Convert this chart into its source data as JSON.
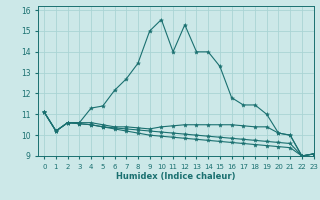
{
  "xlabel": "Humidex (Indice chaleur)",
  "ylabel": "",
  "bg_color": "#cce8e8",
  "grid_color": "#aad4d4",
  "line_color": "#1a7070",
  "xlim": [
    -0.5,
    23
  ],
  "ylim": [
    9,
    16.2
  ],
  "yticks": [
    9,
    10,
    11,
    12,
    13,
    14,
    15,
    16
  ],
  "xticks": [
    0,
    1,
    2,
    3,
    4,
    5,
    6,
    7,
    8,
    9,
    10,
    11,
    12,
    13,
    14,
    15,
    16,
    17,
    18,
    19,
    20,
    21,
    22,
    23
  ],
  "curve1_x": [
    0,
    1,
    2,
    3,
    4,
    5,
    6,
    7,
    8,
    9,
    10,
    11,
    12,
    13,
    14,
    15,
    16,
    17,
    18,
    19,
    20,
    21,
    22,
    23
  ],
  "curve1_y": [
    11.1,
    10.2,
    10.6,
    10.6,
    11.3,
    11.4,
    12.15,
    12.7,
    13.45,
    15.0,
    15.55,
    14.0,
    15.3,
    14.0,
    14.0,
    13.3,
    11.8,
    11.45,
    11.45,
    11.0,
    10.1,
    10.0,
    9.0,
    9.1
  ],
  "curve2_x": [
    0,
    1,
    2,
    3,
    4,
    5,
    6,
    7,
    8,
    9,
    10,
    11,
    12,
    13,
    14,
    15,
    16,
    17,
    18,
    19,
    20,
    21,
    22,
    23
  ],
  "curve2_y": [
    11.1,
    10.2,
    10.6,
    10.6,
    10.6,
    10.5,
    10.4,
    10.4,
    10.35,
    10.3,
    10.4,
    10.45,
    10.5,
    10.5,
    10.5,
    10.5,
    10.5,
    10.45,
    10.4,
    10.4,
    10.1,
    10.0,
    9.0,
    9.1
  ],
  "curve3_x": [
    0,
    1,
    2,
    3,
    4,
    5,
    6,
    7,
    8,
    9,
    10,
    11,
    12,
    13,
    14,
    15,
    16,
    17,
    18,
    19,
    20,
    21,
    22,
    23
  ],
  "curve3_y": [
    11.1,
    10.2,
    10.6,
    10.55,
    10.5,
    10.4,
    10.35,
    10.3,
    10.25,
    10.2,
    10.15,
    10.1,
    10.05,
    10.0,
    9.95,
    9.9,
    9.85,
    9.8,
    9.75,
    9.7,
    9.65,
    9.6,
    9.0,
    9.1
  ],
  "curve4_x": [
    0,
    1,
    2,
    3,
    4,
    5,
    6,
    7,
    8,
    9,
    10,
    11,
    12,
    13,
    14,
    15,
    16,
    17,
    18,
    19,
    20,
    21,
    22,
    23
  ],
  "curve4_y": [
    11.1,
    10.2,
    10.6,
    10.55,
    10.5,
    10.4,
    10.3,
    10.2,
    10.1,
    10.0,
    9.95,
    9.9,
    9.85,
    9.8,
    9.75,
    9.7,
    9.65,
    9.6,
    9.55,
    9.5,
    9.45,
    9.4,
    9.0,
    9.1
  ]
}
